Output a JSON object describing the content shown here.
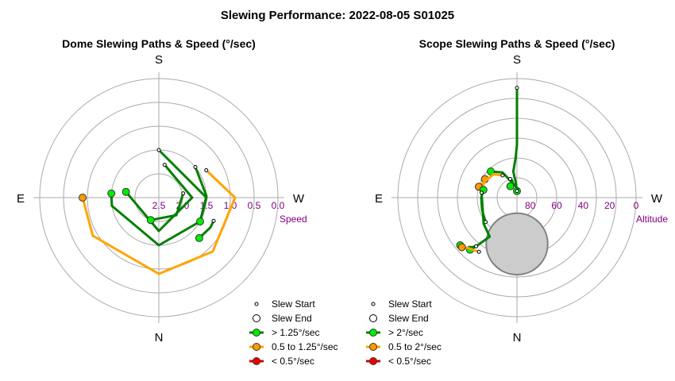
{
  "page_title": "Slewing Performance: 2022-08-05 S01025",
  "colors": {
    "fast": "#008000",
    "fast_marker": "#00ee00",
    "medium": "#ffa500",
    "medium_marker": "#ff9900",
    "slow": "#cc0000",
    "slow_marker": "#ee0000",
    "grid": "#aaaaaa",
    "tick_label": "#800080",
    "moon_fill": "#cccccc",
    "moon_edge": "#808080"
  },
  "chart_data": [
    {
      "type": "polar",
      "title": "Dome Slewing Paths & Speed (°/sec)",
      "cardinals": {
        "top": "S",
        "bottom": "N",
        "left": "E",
        "right": "W"
      },
      "radial_label": "Speed",
      "radial_axis": "speed (°/sec), 2.5 at center decreasing to 0.0 at outer ring",
      "radial_range": [
        2.5,
        0.0
      ],
      "radial_ticks": [
        "2.5",
        "2.0",
        "1.5",
        "1.0",
        "0.5",
        "0.0"
      ],
      "legend": [
        {
          "label": "Slew Start",
          "kind": "start"
        },
        {
          "label": "Slew End",
          "kind": "end"
        },
        {
          "label": "> 1.25°/sec",
          "kind": "fast"
        },
        {
          "label": "0.5 to 1.25°/sec",
          "kind": "medium"
        },
        {
          "label": "< 0.5°/sec",
          "kind": "slow"
        }
      ],
      "paths": [
        {
          "speed_class": "medium",
          "points": [
            [
              60,
              1.35
            ],
            [
              90,
              0.9
            ],
            [
              135,
              0.9
            ],
            [
              180,
              0.9
            ],
            [
              240,
              0.9
            ],
            [
              270,
              0.9
            ]
          ]
        },
        {
          "speed_class": "fast",
          "points": [
            [
              0,
              1.5
            ],
            [
              90,
              1.5
            ],
            [
              120,
              1.5
            ],
            [
              180,
              1.5
            ],
            [
              260,
              1.5
            ],
            [
              275,
              1.5
            ]
          ]
        },
        {
          "speed_class": "fast",
          "points": [
            [
              10,
              1.8
            ],
            [
              90,
              1.8
            ],
            [
              180,
              1.8
            ],
            [
              280,
              1.8
            ]
          ]
        },
        {
          "speed_class": "fast",
          "points": [
            [
              50,
              1.5
            ],
            [
              88,
              1.5
            ],
            [
              120,
              1.5
            ]
          ]
        },
        {
          "speed_class": "fast",
          "points": [
            [
              80,
              1.98
            ],
            [
              135,
              1.98
            ],
            [
              200,
              2.0
            ]
          ]
        },
        {
          "speed_class": "fast",
          "points": [
            [
              113,
              1.25
            ],
            [
              120,
              1.25
            ],
            [
              135,
              1.3
            ]
          ]
        }
      ]
    },
    {
      "type": "polar",
      "title": "Scope Slewing Paths & Speed (°/sec)",
      "cardinals": {
        "top": "S",
        "bottom": "N",
        "left": "E",
        "right": "W"
      },
      "radial_label": "Altitude",
      "radial_axis": "altitude (°), 90 at center decreasing to 0 at outer ring",
      "radial_range": [
        90,
        0
      ],
      "radial_ticks": [
        "80",
        "60",
        "40",
        "20",
        "0"
      ],
      "moon": {
        "azimuth": 0,
        "altitude": 55,
        "radius_deg": 25
      },
      "legend": [
        {
          "label": "Slew Start",
          "kind": "start"
        },
        {
          "label": "Slew End",
          "kind": "end"
        },
        {
          "label": "> 2°/sec",
          "kind": "fast"
        },
        {
          "label": "0.5 to 2°/sec",
          "kind": "medium"
        },
        {
          "label": "< 0.5°/sec",
          "kind": "slow"
        }
      ],
      "paths": [
        {
          "speed_class": "fast",
          "points": [
            [
              180,
              7
            ],
            [
              180,
              10
            ],
            [
              180,
              30
            ],
            [
              180,
              50
            ],
            [
              178,
              60
            ],
            [
              172,
              70
            ],
            [
              175,
              78
            ],
            [
              180,
              85
            ]
          ]
        },
        {
          "speed_class": "fast",
          "points": [
            [
              180,
              85
            ],
            [
              185,
              83
            ],
            [
              150,
              68
            ],
            [
              135,
              62
            ]
          ]
        },
        {
          "speed_class": "fast",
          "points": [
            [
              160,
              75
            ],
            [
              165,
              77
            ],
            [
              150,
              80
            ]
          ]
        },
        {
          "speed_class": "medium",
          "points": [
            [
              103,
              65
            ],
            [
              104,
              63
            ],
            [
              120,
              62
            ]
          ]
        },
        {
          "speed_class": "medium",
          "points": [
            [
              147,
              70
            ],
            [
              135,
              65
            ],
            [
              106,
              60
            ]
          ]
        },
        {
          "speed_class": "fast",
          "points": [
            [
              52,
              60
            ],
            [
              70,
              62
            ],
            [
              90,
              63
            ],
            [
              103,
              64
            ]
          ]
        },
        {
          "speed_class": "fast",
          "points": [
            [
              98,
              63
            ],
            [
              52,
              58
            ],
            [
              35,
              54
            ],
            [
              40,
              42
            ],
            [
              42,
              37
            ]
          ]
        },
        {
          "speed_class": "fast",
          "points": [
            [
              40,
              42
            ],
            [
              45,
              36
            ],
            [
              50,
              34
            ]
          ]
        },
        {
          "speed_class": "medium",
          "points": [
            [
              35,
              40
            ],
            [
              44,
              37
            ],
            [
              48,
              34
            ]
          ]
        }
      ]
    }
  ]
}
